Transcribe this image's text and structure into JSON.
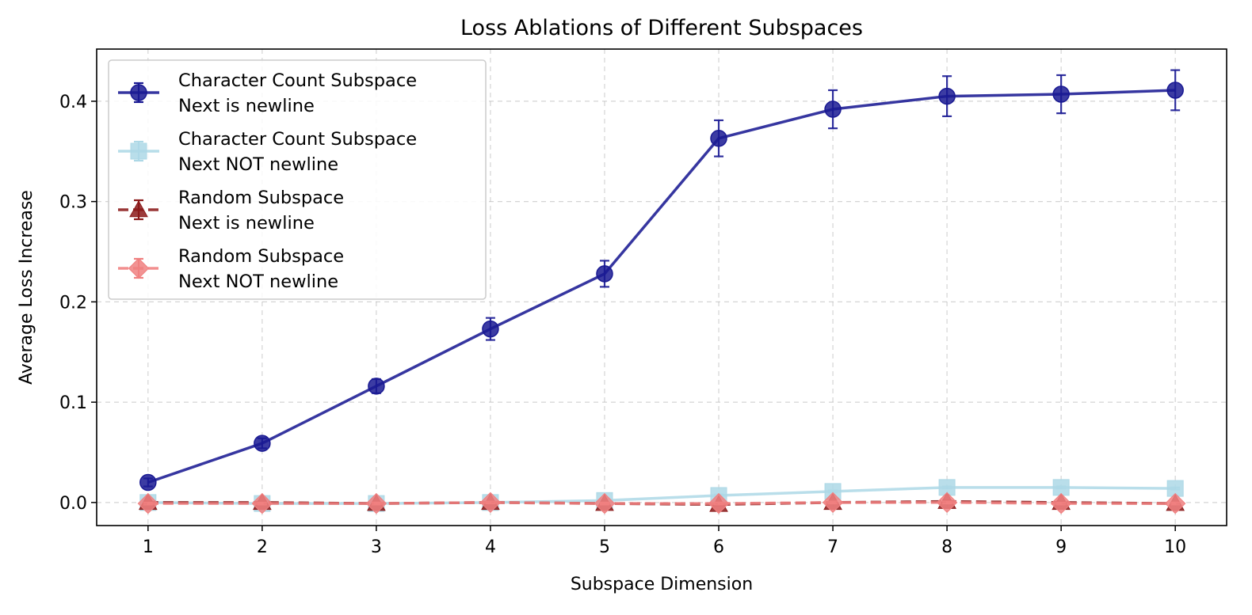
{
  "chart_data": {
    "type": "line",
    "title": "Loss Ablations of Different Subspaces",
    "xlabel": "Subspace Dimension",
    "ylabel": "Average Loss Increase",
    "xlim": [
      0.55,
      10.45
    ],
    "ylim": [
      -0.023,
      0.452
    ],
    "x": [
      1,
      2,
      3,
      4,
      5,
      6,
      7,
      8,
      9,
      10
    ],
    "xticks": [
      1,
      2,
      3,
      4,
      5,
      6,
      7,
      8,
      9,
      10
    ],
    "yticks": [
      0.0,
      0.1,
      0.2,
      0.3,
      0.4
    ],
    "ytick_labels": [
      "0.0",
      "0.1",
      "0.2",
      "0.3",
      "0.4"
    ],
    "grid": true,
    "legend_position": "upper-left",
    "series": [
      {
        "name_line1": "Character Count Subspace",
        "name_line2": " Next is newline",
        "values": [
          0.02,
          0.059,
          0.116,
          0.173,
          0.228,
          0.363,
          0.392,
          0.405,
          0.407,
          0.411
        ],
        "errors": [
          0.004,
          0.005,
          0.007,
          0.011,
          0.013,
          0.018,
          0.019,
          0.02,
          0.019,
          0.02
        ],
        "color": "#1a1a93",
        "marker": "circle",
        "linestyle": "solid"
      },
      {
        "name_line1": "Character Count Subspace",
        "name_line2": " Next NOT newline",
        "values": [
          0.0,
          -0.001,
          -0.001,
          0.0,
          0.002,
          0.007,
          0.011,
          0.015,
          0.015,
          0.014
        ],
        "errors": [
          0.001,
          0.001,
          0.001,
          0.001,
          0.001,
          0.001,
          0.001,
          0.001,
          0.001,
          0.001
        ],
        "color": "#add8e6",
        "marker": "square",
        "linestyle": "solid"
      },
      {
        "name_line1": "Random Subspace",
        "name_line2": " Next is newline",
        "values": [
          0.0,
          0.0,
          -0.001,
          0.0,
          -0.001,
          -0.002,
          0.0,
          0.001,
          0.0,
          -0.001
        ],
        "errors": [
          0.001,
          0.001,
          0.001,
          0.001,
          0.001,
          0.001,
          0.001,
          0.001,
          0.001,
          0.001
        ],
        "color": "#8b1a1a",
        "marker": "triangle",
        "linestyle": "dashed"
      },
      {
        "name_line1": "Random Subspace",
        "name_line2": " Next NOT newline",
        "values": [
          -0.001,
          -0.001,
          -0.001,
          0.0,
          -0.001,
          -0.001,
          0.0,
          0.0,
          -0.001,
          -0.001
        ],
        "errors": [
          0.001,
          0.001,
          0.001,
          0.001,
          0.001,
          0.001,
          0.001,
          0.001,
          0.001,
          0.001
        ],
        "color": "#f08080",
        "marker": "diamond",
        "linestyle": "dashed"
      }
    ]
  }
}
